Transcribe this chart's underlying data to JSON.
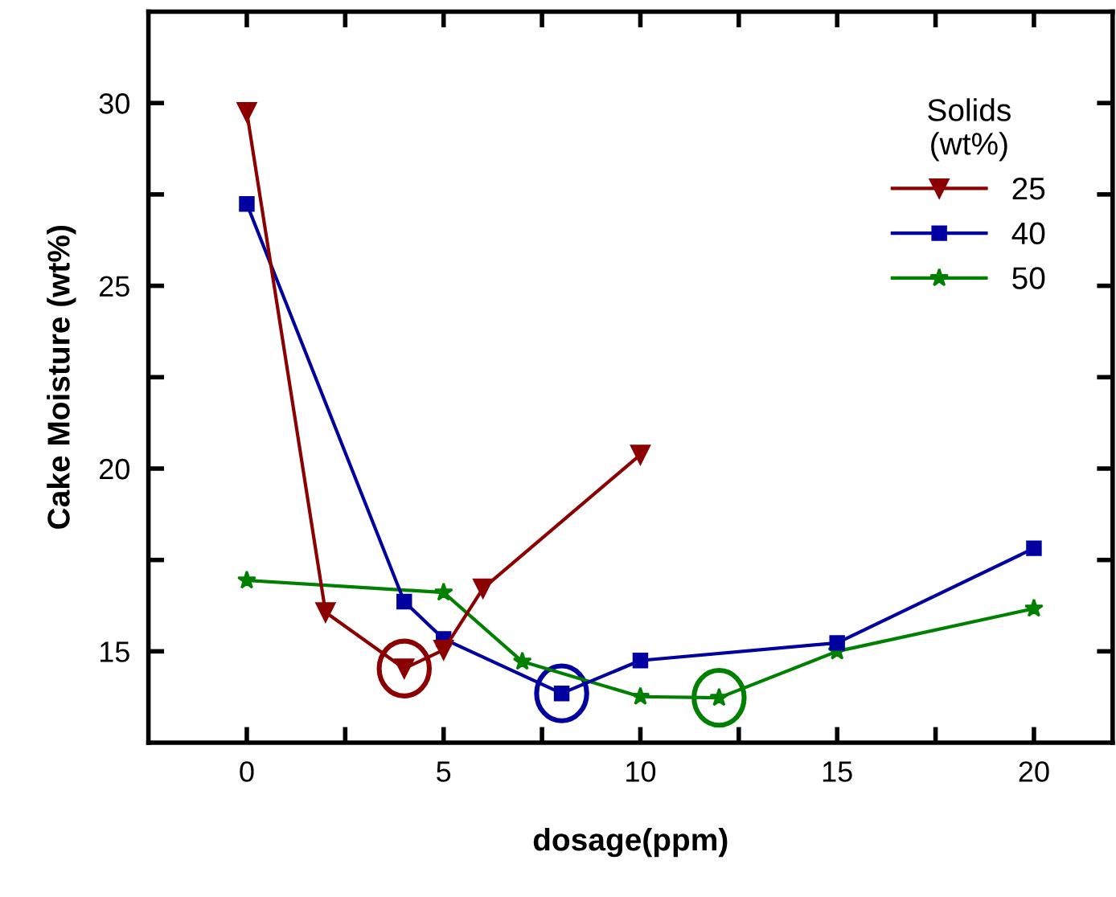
{
  "chart_data": {
    "type": "line",
    "xlabel": "dosage(ppm)",
    "ylabel": "Cake Moisture (wt%)",
    "legend_title": "Solids\n(wt%)",
    "legend": "top right",
    "grid": false,
    "line_style": "solid",
    "xlim": [
      -2.5,
      22
    ],
    "ylim": [
      12.5,
      32.5
    ],
    "xticks": [
      0,
      {
        "value": 2.5,
        "label": null
      },
      5,
      {
        "value": 7.5,
        "label": null
      },
      10,
      {
        "value": 12.5,
        "label": null
      },
      15,
      {
        "value": 17.5,
        "label": null
      },
      20
    ],
    "yticks": [
      15,
      {
        "value": 17.5,
        "label": null
      },
      20,
      {
        "value": 22.5,
        "label": null
      },
      25,
      {
        "value": 27.5,
        "label": null
      },
      30
    ],
    "series": [
      {
        "name": "25",
        "color": "#8b0000",
        "marker": "triangle",
        "x": [
          0,
          2,
          4,
          5,
          6,
          10
        ],
        "values": [
          29.75,
          16.07,
          14.53,
          15.04,
          16.72,
          20.38
        ]
      },
      {
        "name": "40",
        "color": "#0000a0",
        "marker": "square",
        "x": [
          0,
          4,
          5,
          8,
          10,
          15,
          20
        ],
        "values": [
          27.24,
          16.36,
          15.34,
          13.85,
          14.75,
          15.23,
          17.82
        ]
      },
      {
        "name": "50",
        "color": "#008000",
        "marker": "star",
        "x": [
          0,
          5,
          7,
          10,
          12,
          15,
          20
        ],
        "values": [
          16.94,
          16.61,
          14.72,
          13.76,
          13.73,
          15.0,
          16.17
        ]
      }
    ]
  }
}
